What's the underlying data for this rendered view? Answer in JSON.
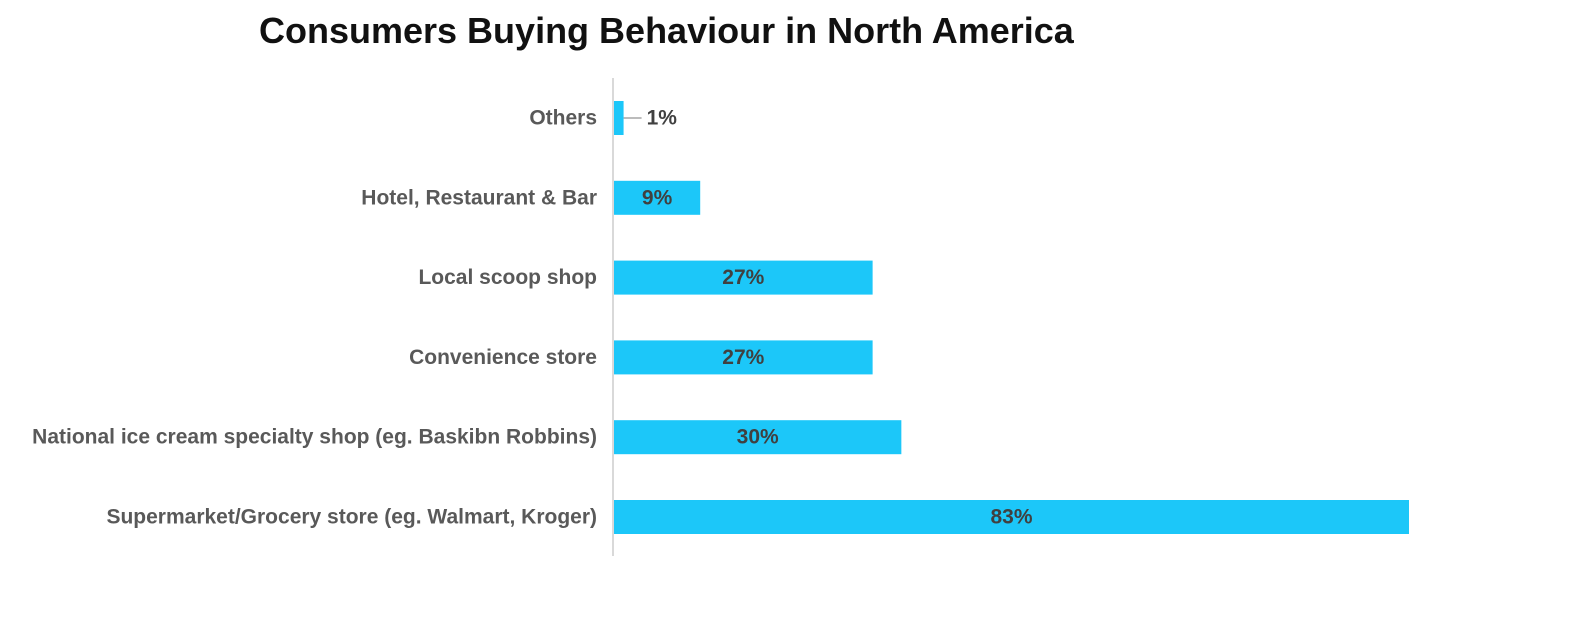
{
  "colors": {
    "bar": "#1CC7F9",
    "axis": "#D9D9D9",
    "leader": "#A6A6A6"
  },
  "chart_data": {
    "type": "bar",
    "orientation": "horizontal",
    "title": "Consumers Buying Behaviour in North America",
    "categories": [
      "Others",
      "Hotel, Restaurant & Bar",
      "Local scoop shop",
      "Convenience store",
      "National ice cream specialty shop (eg. Baskibn Robbins)",
      "Supermarket/Grocery store (eg. Walmart, Kroger)"
    ],
    "values": [
      1,
      9,
      27,
      27,
      30,
      83
    ],
    "value_labels": [
      "1%",
      "9%",
      "27%",
      "27%",
      "30%",
      "83%"
    ],
    "xlim": [
      0,
      100
    ],
    "grid": false,
    "legend": "none"
  }
}
